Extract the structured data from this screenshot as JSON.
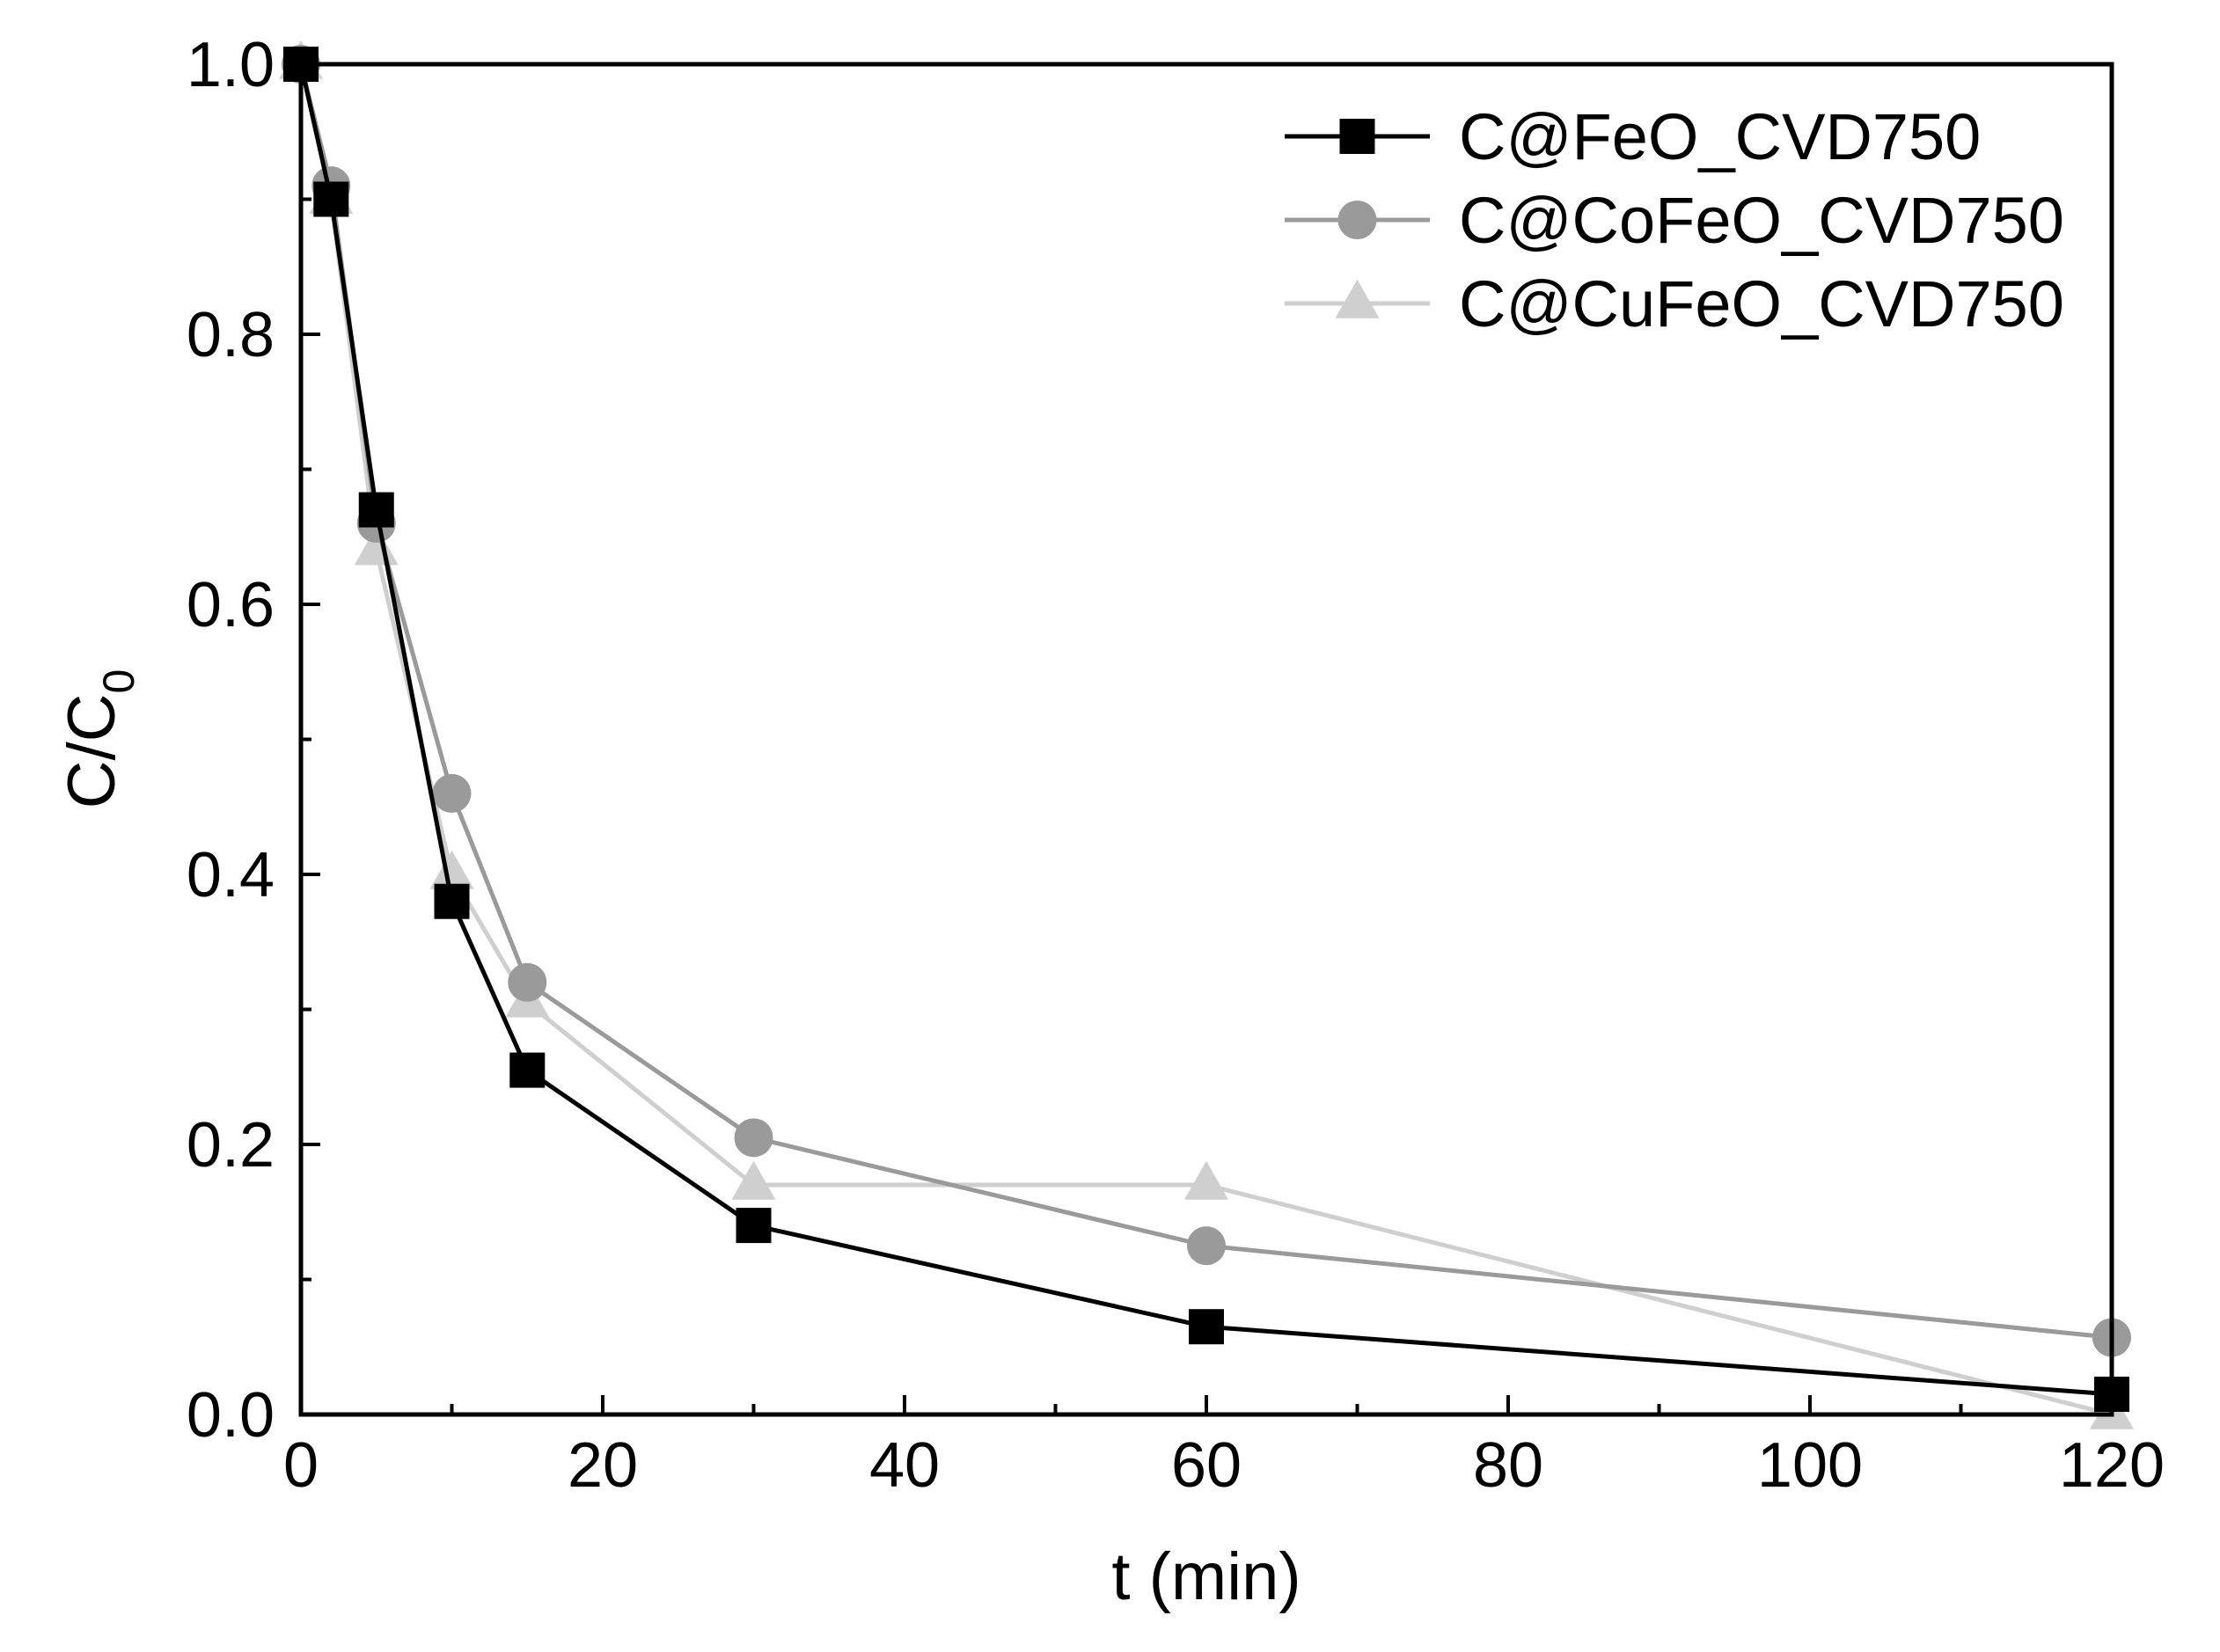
{
  "chart_data": {
    "type": "line",
    "title": "",
    "xlabel": "t (min)",
    "ylabel": "C/C",
    "ylabel_subscript": "0",
    "xlim": [
      0,
      120
    ],
    "ylim": [
      0.0,
      1.0
    ],
    "x_ticks": [
      0,
      20,
      40,
      60,
      80,
      100,
      120
    ],
    "x_tick_labels": [
      "0",
      "20",
      "40",
      "60",
      "80",
      "100",
      "120"
    ],
    "x_minor_ticks": [
      10,
      30,
      50,
      70,
      90,
      110
    ],
    "y_ticks": [
      0.0,
      0.2,
      0.4,
      0.6,
      0.8,
      1.0
    ],
    "y_tick_labels": [
      "0.0",
      "0.2",
      "0.4",
      "0.6",
      "0.8",
      "1.0"
    ],
    "y_minor_ticks": [
      0.1,
      0.3,
      0.5,
      0.7,
      0.9
    ],
    "grid": false,
    "legend_position": "top-right",
    "series": [
      {
        "name": "C@FeO_CVD750",
        "marker": "square",
        "color": "#000000",
        "x": [
          0,
          2,
          5,
          10,
          15,
          30,
          60,
          120
        ],
        "y": [
          1.0,
          0.9,
          0.67,
          0.38,
          0.255,
          0.14,
          0.065,
          0.015
        ]
      },
      {
        "name": "C@CoFeO_CVD750",
        "marker": "circle",
        "color": "#9a9a9a",
        "x": [
          0,
          2,
          5,
          10,
          15,
          30,
          60,
          120
        ],
        "y": [
          1.0,
          0.91,
          0.66,
          0.46,
          0.32,
          0.205,
          0.125,
          0.057
        ]
      },
      {
        "name": "C@CuFeO_CVD750",
        "marker": "triangle",
        "color": "#cfcfcf",
        "x": [
          0,
          2,
          5,
          10,
          15,
          30,
          60,
          120
        ],
        "y": [
          1.0,
          0.9,
          0.64,
          0.4,
          0.305,
          0.17,
          0.17,
          0.0
        ]
      }
    ]
  }
}
